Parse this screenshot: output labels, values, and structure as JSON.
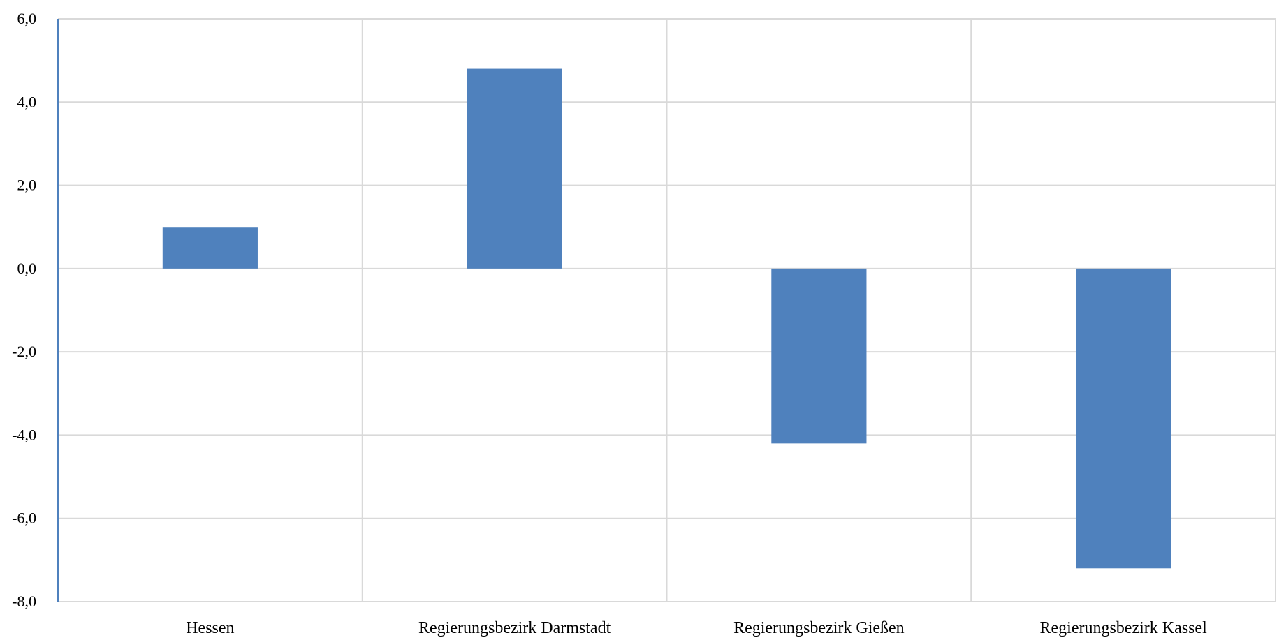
{
  "chart_data": {
    "type": "bar",
    "categories": [
      "Hessen",
      "Regierungsbezirk Darmstadt",
      "Regierungsbezirk Gießen",
      "Regierungsbezirk Kassel"
    ],
    "values": [
      1.0,
      4.8,
      -4.2,
      -7.2
    ],
    "title": "",
    "xlabel": "",
    "ylabel": "",
    "ylim": [
      -8.0,
      6.0
    ],
    "yticks": [
      6.0,
      4.0,
      2.0,
      0.0,
      -2.0,
      -4.0,
      -6.0,
      -8.0
    ],
    "ytick_labels": [
      "6,0",
      "4,0",
      "2,0",
      "0,0",
      "-2,0",
      "-4,0",
      "-6,0",
      "-8,0"
    ],
    "grid": true,
    "legend": "none",
    "bar_color": "#4f81bd",
    "gridline_color": "#d9d9d9"
  }
}
